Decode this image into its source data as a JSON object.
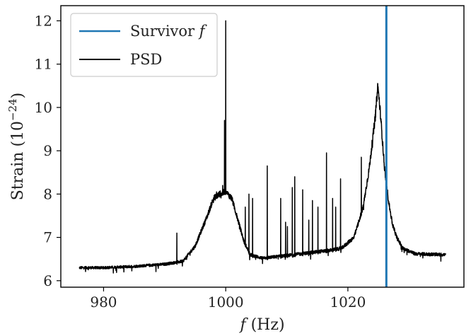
{
  "chart_data": {
    "type": "line",
    "title": "",
    "xlabel": "f (Hz)",
    "ylabel": "Strain (10^-24)",
    "xlim": [
      973,
      1039
    ],
    "ylim": [
      5.85,
      12.35
    ],
    "x_ticks": [
      980,
      1000,
      1020
    ],
    "y_ticks": [
      6,
      7,
      8,
      9,
      10,
      11,
      12
    ],
    "grid": false,
    "legend_position": "top-left",
    "series": [
      {
        "name": "Survivor f",
        "color": "#1f77b4",
        "type": "vertical-line",
        "x": 1026.3
      },
      {
        "name": "PSD",
        "color": "#000000",
        "type": "line",
        "baseline": [
          [
            976,
            6.3
          ],
          [
            980,
            6.3
          ],
          [
            985,
            6.33
          ],
          [
            990,
            6.38
          ],
          [
            993,
            6.45
          ],
          [
            995,
            6.8
          ],
          [
            997,
            7.5
          ],
          [
            998,
            7.9
          ],
          [
            999,
            8.0
          ],
          [
            1000,
            8.05
          ],
          [
            1001,
            7.9
          ],
          [
            1002,
            7.4
          ],
          [
            1003,
            6.9
          ],
          [
            1004,
            6.6
          ],
          [
            1006,
            6.52
          ],
          [
            1010,
            6.58
          ],
          [
            1014,
            6.65
          ],
          [
            1017,
            6.7
          ],
          [
            1019,
            6.75
          ],
          [
            1021,
            7.0
          ],
          [
            1022.5,
            7.7
          ],
          [
            1023.5,
            8.6
          ],
          [
            1024.5,
            9.8
          ],
          [
            1024.9,
            10.5
          ],
          [
            1025.3,
            9.9
          ],
          [
            1026,
            8.6
          ],
          [
            1026.7,
            7.8
          ],
          [
            1027.3,
            7.3
          ],
          [
            1028,
            7.0
          ],
          [
            1029,
            6.75
          ],
          [
            1031,
            6.62
          ],
          [
            1036,
            6.6
          ]
        ],
        "spikes": [
          [
            992,
            7.1
          ],
          [
            998.5,
            8.05
          ],
          [
            999.5,
            8.2
          ],
          [
            999.8,
            9.7
          ],
          [
            1000.0,
            12.0
          ],
          [
            1003.2,
            7.7
          ],
          [
            1003.8,
            8.0
          ],
          [
            1004.4,
            7.9
          ],
          [
            1006.8,
            8.65
          ],
          [
            1009.0,
            7.9
          ],
          [
            1009.8,
            7.35
          ],
          [
            1010.1,
            7.25
          ],
          [
            1010.9,
            8.15
          ],
          [
            1011.3,
            8.4
          ],
          [
            1012.6,
            8.1
          ],
          [
            1013.6,
            7.4
          ],
          [
            1014.2,
            7.85
          ],
          [
            1015.1,
            7.7
          ],
          [
            1016.5,
            8.95
          ],
          [
            1017.5,
            7.9
          ],
          [
            1018.0,
            7.7
          ],
          [
            1018.8,
            8.35
          ],
          [
            1022.2,
            8.85
          ]
        ]
      }
    ]
  },
  "axes": {
    "xlabel_italic": "f",
    "xlabel_unit": " (Hz)",
    "ylabel_main": "Strain (10",
    "ylabel_exp": "−24",
    "ylabel_close": ")"
  },
  "legend": {
    "survivor_text": "Survivor ",
    "survivor_italic": "f",
    "psd_label": "PSD"
  }
}
